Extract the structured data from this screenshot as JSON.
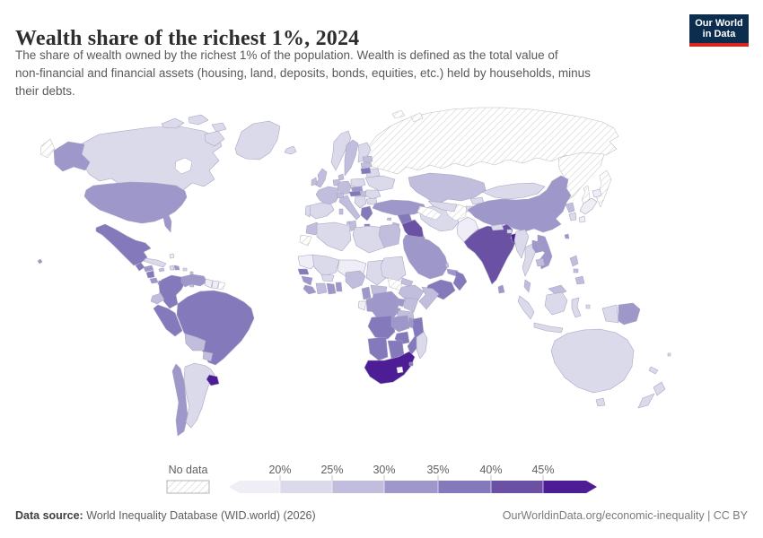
{
  "header": {
    "title": "Wealth share of the richest 1%, 2024",
    "subtitle_lines": [
      "The share of wealth owned by the richest 1% of the population. Wealth is defined as the total value of",
      "non-financial and financial assets (housing, land, deposits, bonds, equities, etc.) held by households, minus",
      "their debts."
    ],
    "logo": {
      "line1": "Our World",
      "line2": "in Data",
      "bg_color": "#0d2d4e",
      "accent_color": "#d8261c"
    }
  },
  "legend": {
    "no_data_label": "No data",
    "tick_labels": [
      "20%",
      "25%",
      "30%",
      "35%",
      "40%",
      "45%"
    ]
  },
  "footer": {
    "source_label": "Data source:",
    "source_value": " World Inequality Database (WID.world) (2026)",
    "credit": "OurWorldinData.org/economic-inequality | CC BY"
  },
  "chart_data": {
    "type": "choropleth-map",
    "title": "Wealth share of the richest 1%",
    "year": 2024,
    "unit": "%",
    "legend_position": "bottom",
    "border_color": "#a6a2c2",
    "no_data": {
      "label": "No data",
      "style": "hatched"
    },
    "bins": [
      {
        "label": "<20%",
        "color": "#efedf5"
      },
      {
        "label": "20–25%",
        "color": "#dadaeb"
      },
      {
        "label": "25–30%",
        "color": "#c1bddd"
      },
      {
        "label": "30–35%",
        "color": "#9e97ca"
      },
      {
        "label": "35–40%",
        "color": "#8379bb"
      },
      {
        "label": "40–45%",
        "color": "#6a51a3"
      },
      {
        "label": "45%+",
        "color": "#4c1d95"
      }
    ],
    "countries": [
      {
        "id": "russia",
        "name": "Russia",
        "bin": "no-data"
      },
      {
        "id": "svalbard",
        "name": "Svalbard",
        "bin": "no-data"
      },
      {
        "id": "greenland",
        "name": "Greenland",
        "bin": 1
      },
      {
        "id": "iceland",
        "name": "Iceland",
        "bin": 1
      },
      {
        "id": "canada",
        "name": "Canada",
        "bin": 1
      },
      {
        "id": "usa",
        "name": "United States",
        "bin": 3
      },
      {
        "id": "mexico",
        "name": "Mexico",
        "bin": 4
      },
      {
        "id": "guatemala",
        "name": "Guatemala",
        "bin": 4
      },
      {
        "id": "honduras",
        "name": "Honduras",
        "bin": 3
      },
      {
        "id": "nicaragua",
        "name": "Nicaragua",
        "bin": 4
      },
      {
        "id": "costa-rica",
        "name": "Costa Rica",
        "bin": 3
      },
      {
        "id": "panama",
        "name": "Panama",
        "bin": 4
      },
      {
        "id": "cuba",
        "name": "Cuba",
        "bin": 1
      },
      {
        "id": "bahamas",
        "name": "Bahamas",
        "bin": 0
      },
      {
        "id": "jamaica",
        "name": "Jamaica",
        "bin": 2
      },
      {
        "id": "haiti",
        "name": "Haiti",
        "bin": 1
      },
      {
        "id": "dominican-republic",
        "name": "Dominican Republic",
        "bin": 3
      },
      {
        "id": "puerto-rico",
        "name": "Puerto Rico",
        "bin": 1
      },
      {
        "id": "lesser-antilles",
        "name": "Lesser Antilles",
        "bin": 2
      },
      {
        "id": "trinidad-and-tobago",
        "name": "Trinidad and Tobago",
        "bin": 2
      },
      {
        "id": "colombia",
        "name": "Colombia",
        "bin": 4
      },
      {
        "id": "venezuela",
        "name": "Venezuela",
        "bin": 3
      },
      {
        "id": "guyana",
        "name": "Guyana",
        "bin": 0
      },
      {
        "id": "suriname",
        "name": "Suriname",
        "bin": 0
      },
      {
        "id": "french-guiana",
        "name": "French Guiana",
        "bin": "no-data"
      },
      {
        "id": "ecuador",
        "name": "Ecuador",
        "bin": 2
      },
      {
        "id": "peru",
        "name": "Peru",
        "bin": 4
      },
      {
        "id": "brazil",
        "name": "Brazil",
        "bin": 4
      },
      {
        "id": "bolivia",
        "name": "Bolivia",
        "bin": 2
      },
      {
        "id": "paraguay",
        "name": "Paraguay",
        "bin": 2
      },
      {
        "id": "chile",
        "name": "Chile",
        "bin": 3
      },
      {
        "id": "argentina",
        "name": "Argentina",
        "bin": 1
      },
      {
        "id": "uruguay",
        "name": "Uruguay",
        "bin": 6
      },
      {
        "id": "norway",
        "name": "Norway",
        "bin": 1
      },
      {
        "id": "sweden",
        "name": "Sweden",
        "bin": 2
      },
      {
        "id": "finland",
        "name": "Finland",
        "bin": 1
      },
      {
        "id": "denmark",
        "name": "Denmark",
        "bin": 2
      },
      {
        "id": "united-kingdom",
        "name": "United Kingdom",
        "bin": 2
      },
      {
        "id": "ireland",
        "name": "Ireland",
        "bin": 2
      },
      {
        "id": "netherlands",
        "name": "Netherlands",
        "bin": 2
      },
      {
        "id": "germany",
        "name": "Germany",
        "bin": 2
      },
      {
        "id": "poland",
        "name": "Poland",
        "bin": 1
      },
      {
        "id": "france",
        "name": "France",
        "bin": 2
      },
      {
        "id": "spain",
        "name": "Spain",
        "bin": 1
      },
      {
        "id": "portugal",
        "name": "Portugal",
        "bin": 1
      },
      {
        "id": "italy",
        "name": "Italy",
        "bin": 2
      },
      {
        "id": "switzerland",
        "name": "Switzerland",
        "bin": 2
      },
      {
        "id": "czechia",
        "name": "Czechia",
        "bin": 3
      },
      {
        "id": "austria",
        "name": "Austria",
        "bin": 4
      },
      {
        "id": "hungary",
        "name": "Hungary",
        "bin": 2
      },
      {
        "id": "balkans",
        "name": "Balkans",
        "bin": 1
      },
      {
        "id": "romania",
        "name": "Romania",
        "bin": 1
      },
      {
        "id": "bulgaria",
        "name": "Bulgaria",
        "bin": 1
      },
      {
        "id": "greece",
        "name": "Greece",
        "bin": 4
      },
      {
        "id": "ukraine",
        "name": "Ukraine",
        "bin": 1
      },
      {
        "id": "belarus",
        "name": "Belarus",
        "bin": 1
      },
      {
        "id": "estonia",
        "name": "Estonia",
        "bin": 2
      },
      {
        "id": "latvia",
        "name": "Latvia",
        "bin": 2
      },
      {
        "id": "lithuania",
        "name": "Lithuania",
        "bin": 4
      },
      {
        "id": "turkey",
        "name": "Turkey",
        "bin": 3
      },
      {
        "id": "cyprus",
        "name": "Cyprus",
        "bin": 2
      },
      {
        "id": "syria",
        "name": "Syria",
        "bin": 4
      },
      {
        "id": "jordan",
        "name": "Jordan",
        "bin": 2
      },
      {
        "id": "iraq",
        "name": "Iraq",
        "bin": 5
      },
      {
        "id": "saudi-arabia",
        "name": "Saudi Arabia",
        "bin": 3
      },
      {
        "id": "kuwait",
        "name": "Kuwait",
        "bin": 3
      },
      {
        "id": "qatar",
        "name": "Qatar",
        "bin": 2
      },
      {
        "id": "united-arab-emirates",
        "name": "United Arab Emirates",
        "bin": 3
      },
      {
        "id": "oman",
        "name": "Oman",
        "bin": 4
      },
      {
        "id": "yemen",
        "name": "Yemen",
        "bin": 4
      },
      {
        "id": "iran",
        "name": "Iran",
        "bin": 1
      },
      {
        "id": "afghanistan",
        "name": "Afghanistan",
        "bin": "no-data"
      },
      {
        "id": "pakistan",
        "name": "Pakistan",
        "bin": 0
      },
      {
        "id": "kazakhstan",
        "name": "Kazakhstan",
        "bin": 2
      },
      {
        "id": "uzbekistan",
        "name": "Uzbekistan",
        "bin": 1
      },
      {
        "id": "turkmenistan",
        "name": "Turkmenistan",
        "bin": "no-data"
      },
      {
        "id": "kyrgyzstan",
        "name": "Kyrgyzstan",
        "bin": 1
      },
      {
        "id": "tajikistan",
        "name": "Tajikistan",
        "bin": 1
      },
      {
        "id": "china",
        "name": "China",
        "bin": 3
      },
      {
        "id": "mongolia",
        "name": "Mongolia",
        "bin": 1
      },
      {
        "id": "india",
        "name": "India",
        "bin": 5
      },
      {
        "id": "nepal",
        "name": "Nepal",
        "bin": 1
      },
      {
        "id": "bhutan",
        "name": "Bhutan",
        "bin": 1
      },
      {
        "id": "bangladesh",
        "name": "Bangladesh",
        "bin": 6
      },
      {
        "id": "sri-lanka",
        "name": "Sri Lanka",
        "bin": 3
      },
      {
        "id": "north-korea",
        "name": "North Korea",
        "bin": 2
      },
      {
        "id": "south-korea",
        "name": "South Korea",
        "bin": 1
      },
      {
        "id": "japan",
        "name": "Japan",
        "bin": 0
      },
      {
        "id": "taiwan",
        "name": "Taiwan",
        "bin": 3
      },
      {
        "id": "myanmar",
        "name": "Myanmar",
        "bin": 1
      },
      {
        "id": "thailand",
        "name": "Thailand",
        "bin": 1
      },
      {
        "id": "laos",
        "name": "Laos",
        "bin": 3
      },
      {
        "id": "vietnam",
        "name": "Vietnam",
        "bin": 3
      },
      {
        "id": "cambodia",
        "name": "Cambodia",
        "bin": 2
      },
      {
        "id": "malaysia",
        "name": "Malaysia",
        "bin": 2
      },
      {
        "id": "indonesia",
        "name": "Indonesia",
        "bin": 1
      },
      {
        "id": "philippines",
        "name": "Philippines",
        "bin": 2
      },
      {
        "id": "papua-new-guinea",
        "name": "Papua New Guinea",
        "bin": 3
      },
      {
        "id": "morocco",
        "name": "Morocco",
        "bin": 2
      },
      {
        "id": "western-sahara",
        "name": "Western Sahara",
        "bin": "no-data"
      },
      {
        "id": "algeria",
        "name": "Algeria",
        "bin": 1
      },
      {
        "id": "tunisia",
        "name": "Tunisia",
        "bin": 2
      },
      {
        "id": "libya",
        "name": "Libya",
        "bin": 1
      },
      {
        "id": "egypt",
        "name": "Egypt",
        "bin": 2
      },
      {
        "id": "mauritania",
        "name": "Mauritania",
        "bin": 0
      },
      {
        "id": "mali",
        "name": "Mali",
        "bin": 1
      },
      {
        "id": "niger",
        "name": "Niger",
        "bin": 0
      },
      {
        "id": "chad",
        "name": "Chad",
        "bin": 1
      },
      {
        "id": "sudan",
        "name": "Sudan",
        "bin": 1
      },
      {
        "id": "south-sudan",
        "name": "South Sudan",
        "bin": "no-data"
      },
      {
        "id": "eritrea",
        "name": "Eritrea",
        "bin": 2
      },
      {
        "id": "ethiopia",
        "name": "Ethiopia",
        "bin": 2
      },
      {
        "id": "somalia",
        "name": "Somalia",
        "bin": 2
      },
      {
        "id": "senegal",
        "name": "Senegal",
        "bin": 4
      },
      {
        "id": "guinea",
        "name": "Guinea",
        "bin": 3
      },
      {
        "id": "sierra-leone",
        "name": "Sierra Leone",
        "bin": 3
      },
      {
        "id": "ivory-coast",
        "name": "Côte d'Ivoire",
        "bin": 2
      },
      {
        "id": "ghana",
        "name": "Ghana",
        "bin": 3
      },
      {
        "id": "benin",
        "name": "Benin",
        "bin": 3
      },
      {
        "id": "burkina-faso",
        "name": "Burkina Faso",
        "bin": 1
      },
      {
        "id": "nigeria",
        "name": "Nigeria",
        "bin": 2
      },
      {
        "id": "cameroon",
        "name": "Cameroon",
        "bin": 3
      },
      {
        "id": "central-african-republic",
        "name": "Central African Republic",
        "bin": 2
      },
      {
        "id": "gabon",
        "name": "Gabon",
        "bin": 0
      },
      {
        "id": "congo",
        "name": "Congo",
        "bin": 3
      },
      {
        "id": "democratic-republic-of-congo",
        "name": "Democratic Republic of Congo",
        "bin": 3
      },
      {
        "id": "uganda",
        "name": "Uganda",
        "bin": 3
      },
      {
        "id": "kenya",
        "name": "Kenya",
        "bin": 2
      },
      {
        "id": "rwanda",
        "name": "Rwanda",
        "bin": 3
      },
      {
        "id": "tanzania",
        "name": "Tanzania",
        "bin": 2
      },
      {
        "id": "angola",
        "name": "Angola",
        "bin": 4
      },
      {
        "id": "zambia",
        "name": "Zambia",
        "bin": 3
      },
      {
        "id": "malawi",
        "name": "Malawi",
        "bin": 3
      },
      {
        "id": "mozambique",
        "name": "Mozambique",
        "bin": 4
      },
      {
        "id": "zimbabwe",
        "name": "Zimbabwe",
        "bin": 4
      },
      {
        "id": "namibia",
        "name": "Namibia",
        "bin": 4
      },
      {
        "id": "botswana",
        "name": "Botswana",
        "bin": 4
      },
      {
        "id": "south-africa",
        "name": "South Africa",
        "bin": 6
      },
      {
        "id": "lesotho",
        "name": "Lesotho",
        "bin": "no-data"
      },
      {
        "id": "eswatini",
        "name": "Eswatini",
        "bin": 4
      },
      {
        "id": "madagascar",
        "name": "Madagascar",
        "bin": 1
      },
      {
        "id": "australia",
        "name": "Australia",
        "bin": 1
      },
      {
        "id": "new-zealand",
        "name": "New Zealand",
        "bin": 1
      },
      {
        "id": "new-caledonia",
        "name": "New Caledonia",
        "bin": 1
      },
      {
        "id": "fiji",
        "name": "Fiji",
        "bin": 1
      }
    ]
  }
}
